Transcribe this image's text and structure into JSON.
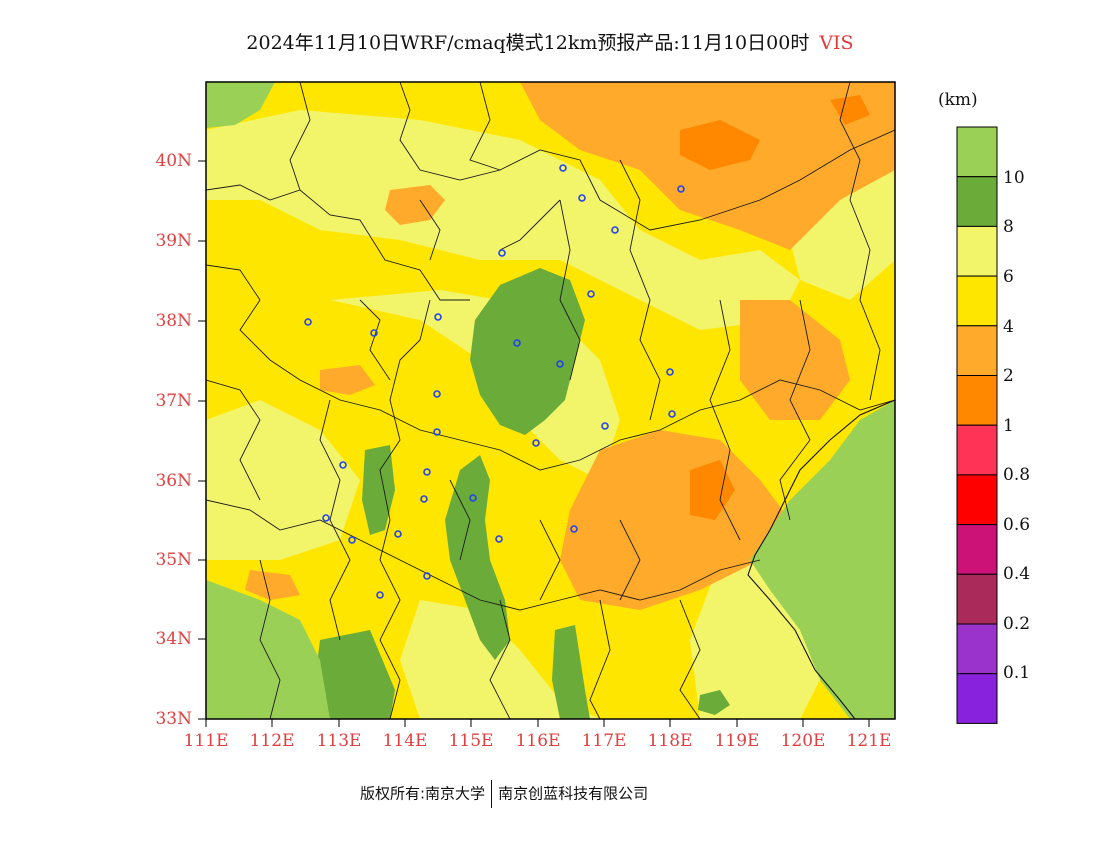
{
  "title": {
    "main": "2024年11月10日WRF/cmaq模式12km预报产品:11月10日00时",
    "variable": "VIS"
  },
  "colorbar": {
    "unit": "(km)",
    "colors": [
      "#9ad055",
      "#6aab3a",
      "#f2f56a",
      "#ffe600",
      "#ffaa2a",
      "#ff8800",
      "#ff3355",
      "#ff0000",
      "#cc1177",
      "#aa2a5a",
      "#9933cc",
      "#8822dd"
    ],
    "labels": [
      "10",
      "8",
      "6",
      "4",
      "2",
      "1",
      "0.8",
      "0.6",
      "0.4",
      "0.2",
      "0.1"
    ]
  },
  "axes": {
    "lat_labels": [
      "40N",
      "39N",
      "38N",
      "37N",
      "36N",
      "35N",
      "34N",
      "33N"
    ],
    "lon_labels": [
      "111E",
      "112E",
      "113E",
      "114E",
      "115E",
      "116E",
      "117E",
      "118E",
      "119E",
      "120E",
      "121E"
    ]
  },
  "footer": {
    "left": "版权所有:南京大学",
    "right": "南京创蓝科技有限公司"
  }
}
